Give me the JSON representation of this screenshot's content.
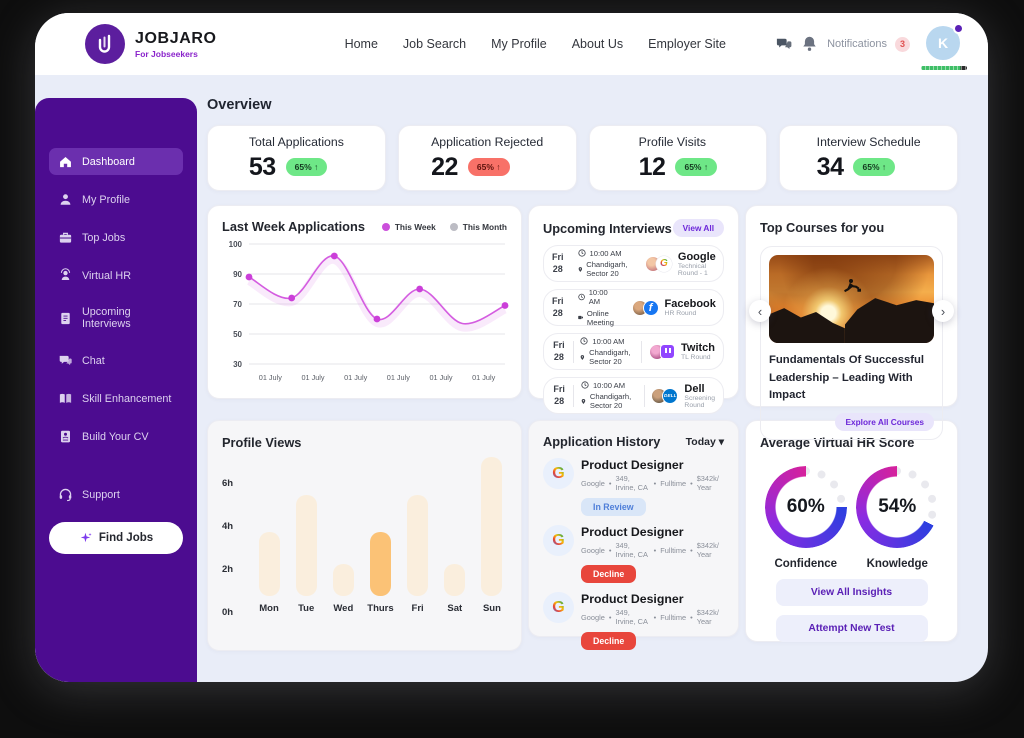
{
  "header": {
    "logo": {
      "title": "JOBJARO",
      "subtitle": "For Jobseekers"
    },
    "nav": [
      "Home",
      "Job Search",
      "My Profile",
      "About Us",
      "Employer Site"
    ],
    "notifications": {
      "label": "Notifications",
      "count": "3"
    },
    "avatar": {
      "initial": "K"
    }
  },
  "sidebar": {
    "items": [
      {
        "label": "Dashboard",
        "active": true
      },
      {
        "label": "My Profile"
      },
      {
        "label": "Top Jobs"
      },
      {
        "label": "Virtual HR"
      },
      {
        "label": "Upcoming Interviews"
      },
      {
        "label": "Chat"
      },
      {
        "label": "Skill Enhancement"
      },
      {
        "label": "Build Your CV"
      }
    ],
    "support_label": "Support",
    "find_jobs_label": "Find Jobs"
  },
  "overview": {
    "title": "Overview",
    "stats": [
      {
        "label": "Total Applications",
        "value": "53",
        "change": "65% ↑",
        "trend": "up"
      },
      {
        "label": "Application Rejected",
        "value": "22",
        "change": "65% ↑",
        "trend": "down"
      },
      {
        "label": "Profile Visits",
        "value": "12",
        "change": "65% ↑",
        "trend": "up"
      },
      {
        "label": "Interview Schedule",
        "value": "34",
        "change": "65% ↑",
        "trend": "up"
      }
    ]
  },
  "chart_data": [
    {
      "type": "line",
      "title": "Last Week Applications",
      "legend": [
        "This Week",
        "This Month"
      ],
      "legend_colors": [
        "#cb4fdb",
        "#bcbcc4"
      ],
      "yticks": [
        100,
        90,
        70,
        50,
        30
      ],
      "x_labels": [
        "01 July",
        "01 July",
        "01 July",
        "01 July",
        "01 July",
        "01 July"
      ],
      "series": [
        {
          "name": "This Week",
          "values": [
            88,
            74,
            96,
            60,
            80,
            57,
            69
          ]
        }
      ],
      "dot_indices": [
        0,
        1,
        2,
        3,
        4,
        6
      ],
      "color": "#d45ce0",
      "grid": true
    },
    {
      "type": "bar",
      "title": "Profile Views",
      "categories": [
        "Mon",
        "Tue",
        "Wed",
        "Thurs",
        "Fri",
        "Sat",
        "Sun"
      ],
      "values": [
        3,
        4.7,
        1.5,
        3,
        4.7,
        1.5,
        6.5
      ],
      "unit": "h",
      "yticks": [
        "6h",
        "4h",
        "2h",
        "0h"
      ],
      "ytick_values": [
        6,
        4,
        2,
        0
      ],
      "ymax": 7,
      "highlight_index": 3,
      "bar_color": "#faeedd",
      "highlight_color": "#fbc276"
    },
    {
      "type": "donut",
      "title": "Average Virtual HR Score",
      "items": [
        {
          "label": "Confidence",
          "value": 60
        },
        {
          "label": "Knowledge",
          "value": 54
        }
      ],
      "arc_colors": [
        "#d6219c",
        "#8a2be2",
        "#2b3fe0"
      ]
    }
  ],
  "interviews": {
    "title": "Upcoming Interviews",
    "view_all_label": "View All",
    "items": [
      {
        "day": "Fri",
        "date": "28",
        "time": "10:00 AM",
        "place": "Chandigarh, Sector 20",
        "mode": "location",
        "company": "Google",
        "round": "Technical Round - 1"
      },
      {
        "day": "Fri",
        "date": "28",
        "time": "10:00 AM",
        "place": "Online Meeting",
        "mode": "video",
        "company": "Facebook",
        "round": "HR Round"
      },
      {
        "day": "Fri",
        "date": "28",
        "time": "10:00 AM",
        "place": "Chandigarh, Sector 20",
        "mode": "location",
        "company": "Twitch",
        "round": "TL Round"
      },
      {
        "day": "Fri",
        "date": "28",
        "time": "10:00 AM",
        "place": "Chandigarh, Sector 20",
        "mode": "location",
        "company": "Dell",
        "round": "Screening Round"
      }
    ]
  },
  "courses": {
    "title": "Top Courses for you",
    "course_title": "Fundamentals Of Successful Leadership – Leading With Impact",
    "cta_label": "Explore All Courses"
  },
  "history": {
    "title": "Application History",
    "filter_label": "Today",
    "items": [
      {
        "role": "Product Designer",
        "company": "Google",
        "location": "349, Irvine, CA",
        "employment": "Fulltime",
        "salary": "$342k/ Year",
        "status": "In Review",
        "status_type": "review"
      },
      {
        "role": "Product Designer",
        "company": "Google",
        "location": "349, Irvine, CA",
        "employment": "Fulltime",
        "salary": "$342k/ Year",
        "status": "Decline",
        "status_type": "decline"
      },
      {
        "role": "Product Designer",
        "company": "Google",
        "location": "349, Irvine, CA",
        "employment": "Fulltime",
        "salary": "$342k/ Year",
        "status": "Decline",
        "status_type": "decline"
      }
    ]
  },
  "hr_score": {
    "title": "Average Virtual HR Score",
    "scores": [
      {
        "label": "Confidence",
        "value": 60
      },
      {
        "label": "Knowledge",
        "value": 54
      }
    ],
    "buttons": [
      "View All Insights",
      "Attempt New Test"
    ]
  },
  "glyphs": {
    "bullet": "•",
    "chevron_left": "‹",
    "chevron_right": "›",
    "caret_down": "▾",
    "google_g": "G",
    "facebook_f": "f",
    "dell": "DELL"
  },
  "colors": {
    "sidebar": "#4c0c90",
    "sidebar_active": "#6b2fae",
    "accent": "#6d28d9",
    "stat_up": "#6ee787",
    "stat_down": "#f87168",
    "line": "#d45ce0",
    "bar": "#faeedd",
    "bar_highlight": "#fbc276",
    "status_review_bg": "#d9e6f8",
    "status_decline_bg": "#e8463c",
    "donut_gradient": [
      "#d6219c",
      "#8a2be2",
      "#2b3fe0"
    ]
  }
}
